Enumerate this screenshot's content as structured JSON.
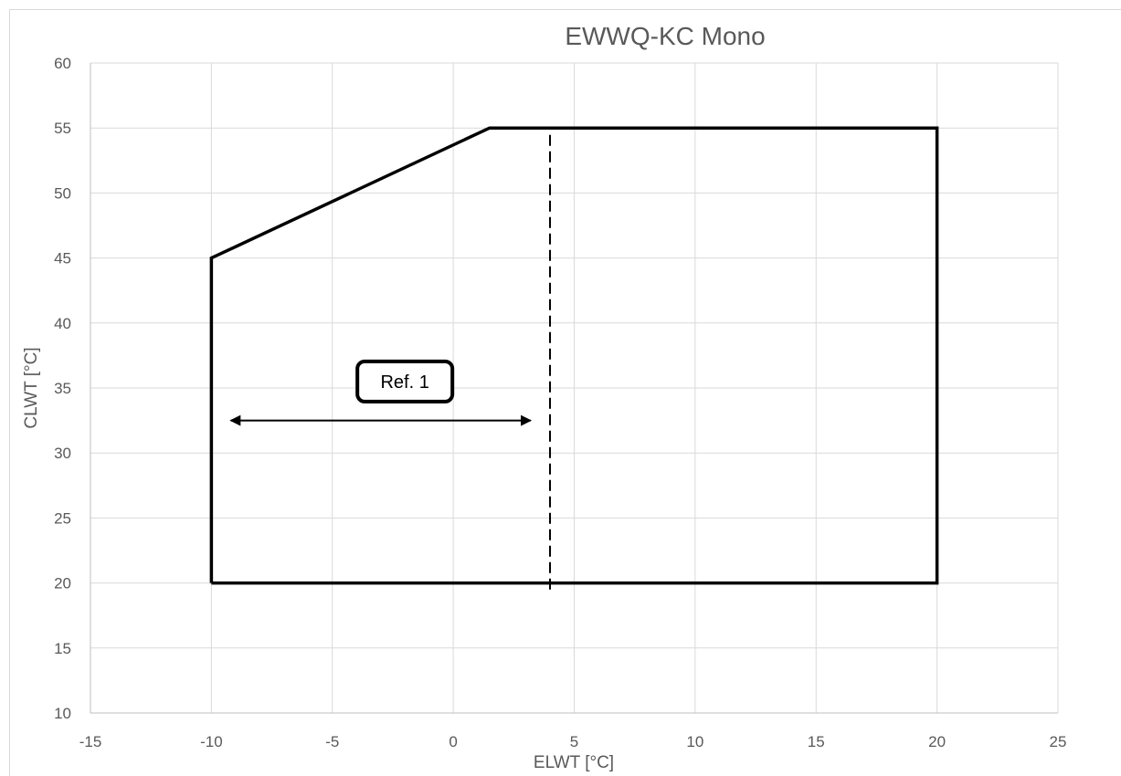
{
  "chart_data": {
    "type": "line",
    "title": "EWWQ-KC Mono",
    "xlabel": "ELWT [°C]",
    "ylabel": "CLWT [°C]",
    "xlim": [
      -15,
      25
    ],
    "ylim": [
      10,
      60
    ],
    "x_ticks": [
      -15,
      -10,
      -5,
      0,
      5,
      10,
      15,
      20,
      25
    ],
    "y_ticks": [
      10,
      15,
      20,
      25,
      30,
      35,
      40,
      45,
      50,
      55,
      60
    ],
    "grid": true,
    "series": [
      {
        "style": "solid",
        "color": "#000000",
        "x": [
          -10,
          -10,
          1.5,
          20,
          20,
          -10
        ],
        "y": [
          20,
          45,
          55,
          55,
          20,
          20
        ]
      },
      {
        "style": "dashed",
        "color": "#000000",
        "x": [
          4,
          4
        ],
        "y": [
          19.5,
          54.5
        ]
      }
    ],
    "annotations": [
      {
        "text": "Ref. 1",
        "kind": "boxed-label",
        "x": -2,
        "y": 35.5
      },
      {
        "kind": "double-arrow",
        "x": [
          -9.2,
          3.2
        ],
        "y": [
          32.5,
          32.5
        ]
      }
    ]
  }
}
